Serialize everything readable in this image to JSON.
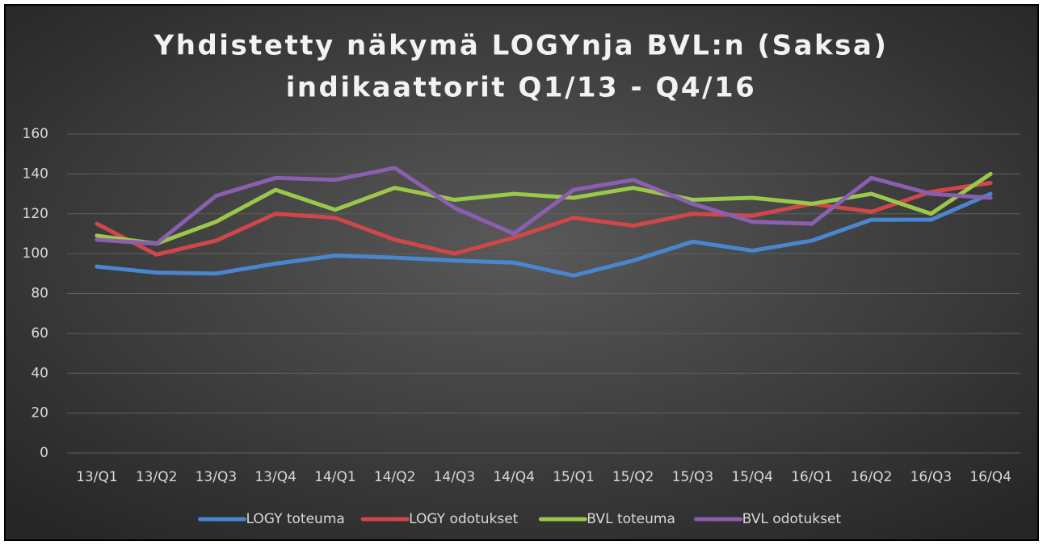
{
  "chart_data": {
    "type": "line",
    "title": [
      "Yhdistetty näkymä LOGYnja BVL:n (Saksa)",
      "indikaattorit Q1/13 - Q4/16"
    ],
    "categories": [
      "13/Q1",
      "13/Q2",
      "13/Q3",
      "13/Q4",
      "14/Q1",
      "14/Q2",
      "14/Q3",
      "14/Q4",
      "15/Q1",
      "15/Q2",
      "15/Q3",
      "15/Q4",
      "16/Q1",
      "16/Q2",
      "16/Q3",
      "16/Q4"
    ],
    "series": [
      {
        "name": "LOGY toteuma",
        "color": "#4a86d0",
        "values": [
          93.5,
          90.5,
          90,
          95,
          99,
          98,
          96.5,
          95.5,
          89,
          96.5,
          106,
          101.5,
          106.5,
          117,
          117,
          130
        ]
      },
      {
        "name": "LOGY odotukset",
        "color": "#d0474a",
        "values": [
          115,
          99.5,
          106.5,
          120,
          118,
          107,
          100,
          108,
          118,
          114,
          120,
          119,
          125,
          121,
          131,
          135.5
        ]
      },
      {
        "name": "BVL toteuma",
        "color": "#9bc84a",
        "values": [
          109,
          105,
          116,
          132,
          122,
          133,
          127,
          130,
          128,
          133,
          127,
          128,
          125,
          130,
          120,
          140
        ]
      },
      {
        "name": "BVL odotukset",
        "color": "#8a5fb0",
        "values": [
          107,
          105,
          129,
          138,
          137,
          143,
          123,
          110,
          132,
          137,
          125,
          116,
          115,
          138,
          130,
          128
        ]
      }
    ],
    "ylim": [
      0,
      160
    ],
    "yticks": [
      0,
      20,
      40,
      60,
      80,
      100,
      120,
      140,
      160
    ],
    "grid": true,
    "legend": "bottom"
  }
}
